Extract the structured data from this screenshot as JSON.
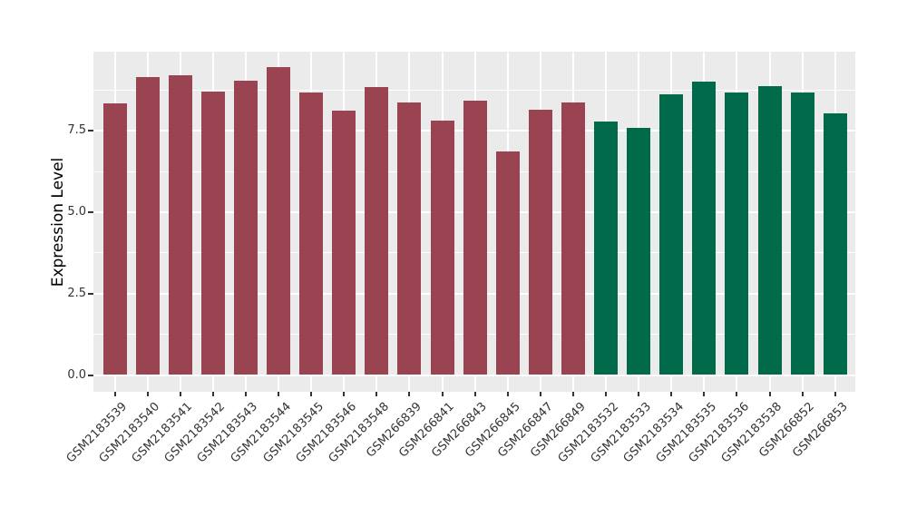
{
  "chart_data": {
    "type": "bar",
    "title": "",
    "xlabel": "",
    "ylabel": "Expression Level",
    "ylim": [
      0,
      9.92
    ],
    "yticks": [
      0,
      2.5,
      5,
      7.5
    ],
    "ytick_labels": [
      "0.0",
      "2.5",
      "5.0",
      "7.5"
    ],
    "minor_gridlines": [
      1.25,
      3.75,
      6.25,
      8.75
    ],
    "grid": "on",
    "legend": "none",
    "panel_background": "#ebebeb",
    "gridline_color": "#ffffff",
    "categories": [
      "GSM2183539",
      "GSM2183540",
      "GSM2183541",
      "GSM2183542",
      "GSM2183543",
      "GSM2183544",
      "GSM2183545",
      "GSM2183546",
      "GSM2183548",
      "GSM266839",
      "GSM266841",
      "GSM266843",
      "GSM266845",
      "GSM266847",
      "GSM266849",
      "GSM2183532",
      "GSM2183533",
      "GSM2183534",
      "GSM2183535",
      "GSM2183536",
      "GSM2183538",
      "GSM266852",
      "GSM266853"
    ],
    "values": [
      8.34,
      9.17,
      9.21,
      8.71,
      9.04,
      9.46,
      8.69,
      8.12,
      8.85,
      8.37,
      7.83,
      8.42,
      6.87,
      8.16,
      8.38,
      7.78,
      7.6,
      8.64,
      9.03,
      8.68,
      8.89,
      8.68,
      8.05
    ],
    "groups": [
      0,
      0,
      0,
      0,
      0,
      0,
      0,
      0,
      0,
      0,
      0,
      0,
      0,
      0,
      0,
      1,
      1,
      1,
      1,
      1,
      1,
      1,
      1
    ],
    "group_colors": [
      "#9a4452",
      "#006a4a"
    ]
  }
}
